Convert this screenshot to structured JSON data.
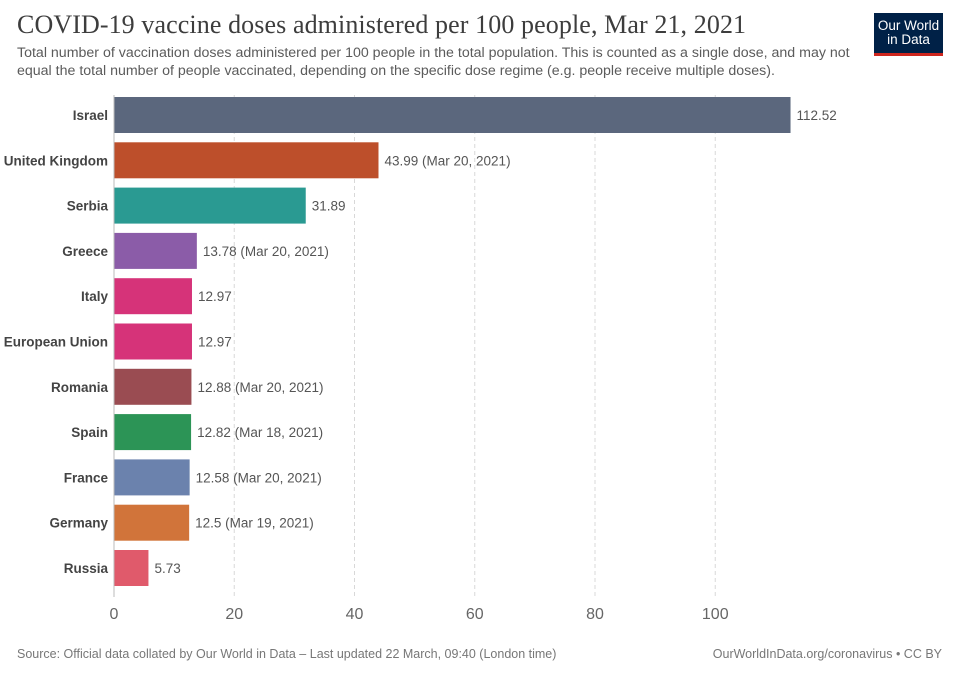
{
  "header": {
    "title": "COVID-19 vaccine doses administered per 100 people, Mar 21, 2021",
    "subtitle": "Total number of vaccination doses administered per 100 people in the total population. This is counted as a single dose, and may not equal the total number of people vaccinated, depending on the specific dose regime (e.g. people receive multiple doses).",
    "logo_line1": "Our World",
    "logo_line2": "in Data"
  },
  "footer": {
    "source": "Source: Official data collated by Our World in Data – Last updated 22 March, 09:40 (London time)",
    "license": "OurWorldInData.org/coronavirus • CC BY"
  },
  "colors": {
    "brand_navy": "#002147",
    "brand_red": "#ce261e"
  },
  "chart_data": {
    "type": "bar",
    "orientation": "horizontal",
    "categories": [
      "Israel",
      "United Kingdom",
      "Serbia",
      "Greece",
      "Italy",
      "European Union",
      "Romania",
      "Spain",
      "France",
      "Germany",
      "Russia"
    ],
    "values": [
      112.52,
      43.99,
      31.89,
      13.78,
      12.97,
      12.97,
      12.88,
      12.82,
      12.58,
      12.5,
      5.73
    ],
    "value_labels": [
      "112.52",
      "43.99 (Mar 20, 2021)",
      "31.89",
      "13.78 (Mar 20, 2021)",
      "12.97",
      "12.97",
      "12.88 (Mar 20, 2021)",
      "12.82 (Mar 18, 2021)",
      "12.58 (Mar 20, 2021)",
      "12.5 (Mar 19, 2021)",
      "5.73"
    ],
    "colors": [
      "#5b677d",
      "#bd4f2b",
      "#2a9a92",
      "#8b5ca8",
      "#d63379",
      "#d63379",
      "#9a4c52",
      "#2c9456",
      "#6b82ad",
      "#d1743a",
      "#e05a6b"
    ],
    "xlim": [
      0,
      120
    ],
    "xticks": [
      0,
      20,
      40,
      60,
      80,
      100
    ],
    "grid": true,
    "title": "COVID-19 vaccine doses administered per 100 people, Mar 21, 2021",
    "xlabel": "",
    "ylabel": ""
  }
}
